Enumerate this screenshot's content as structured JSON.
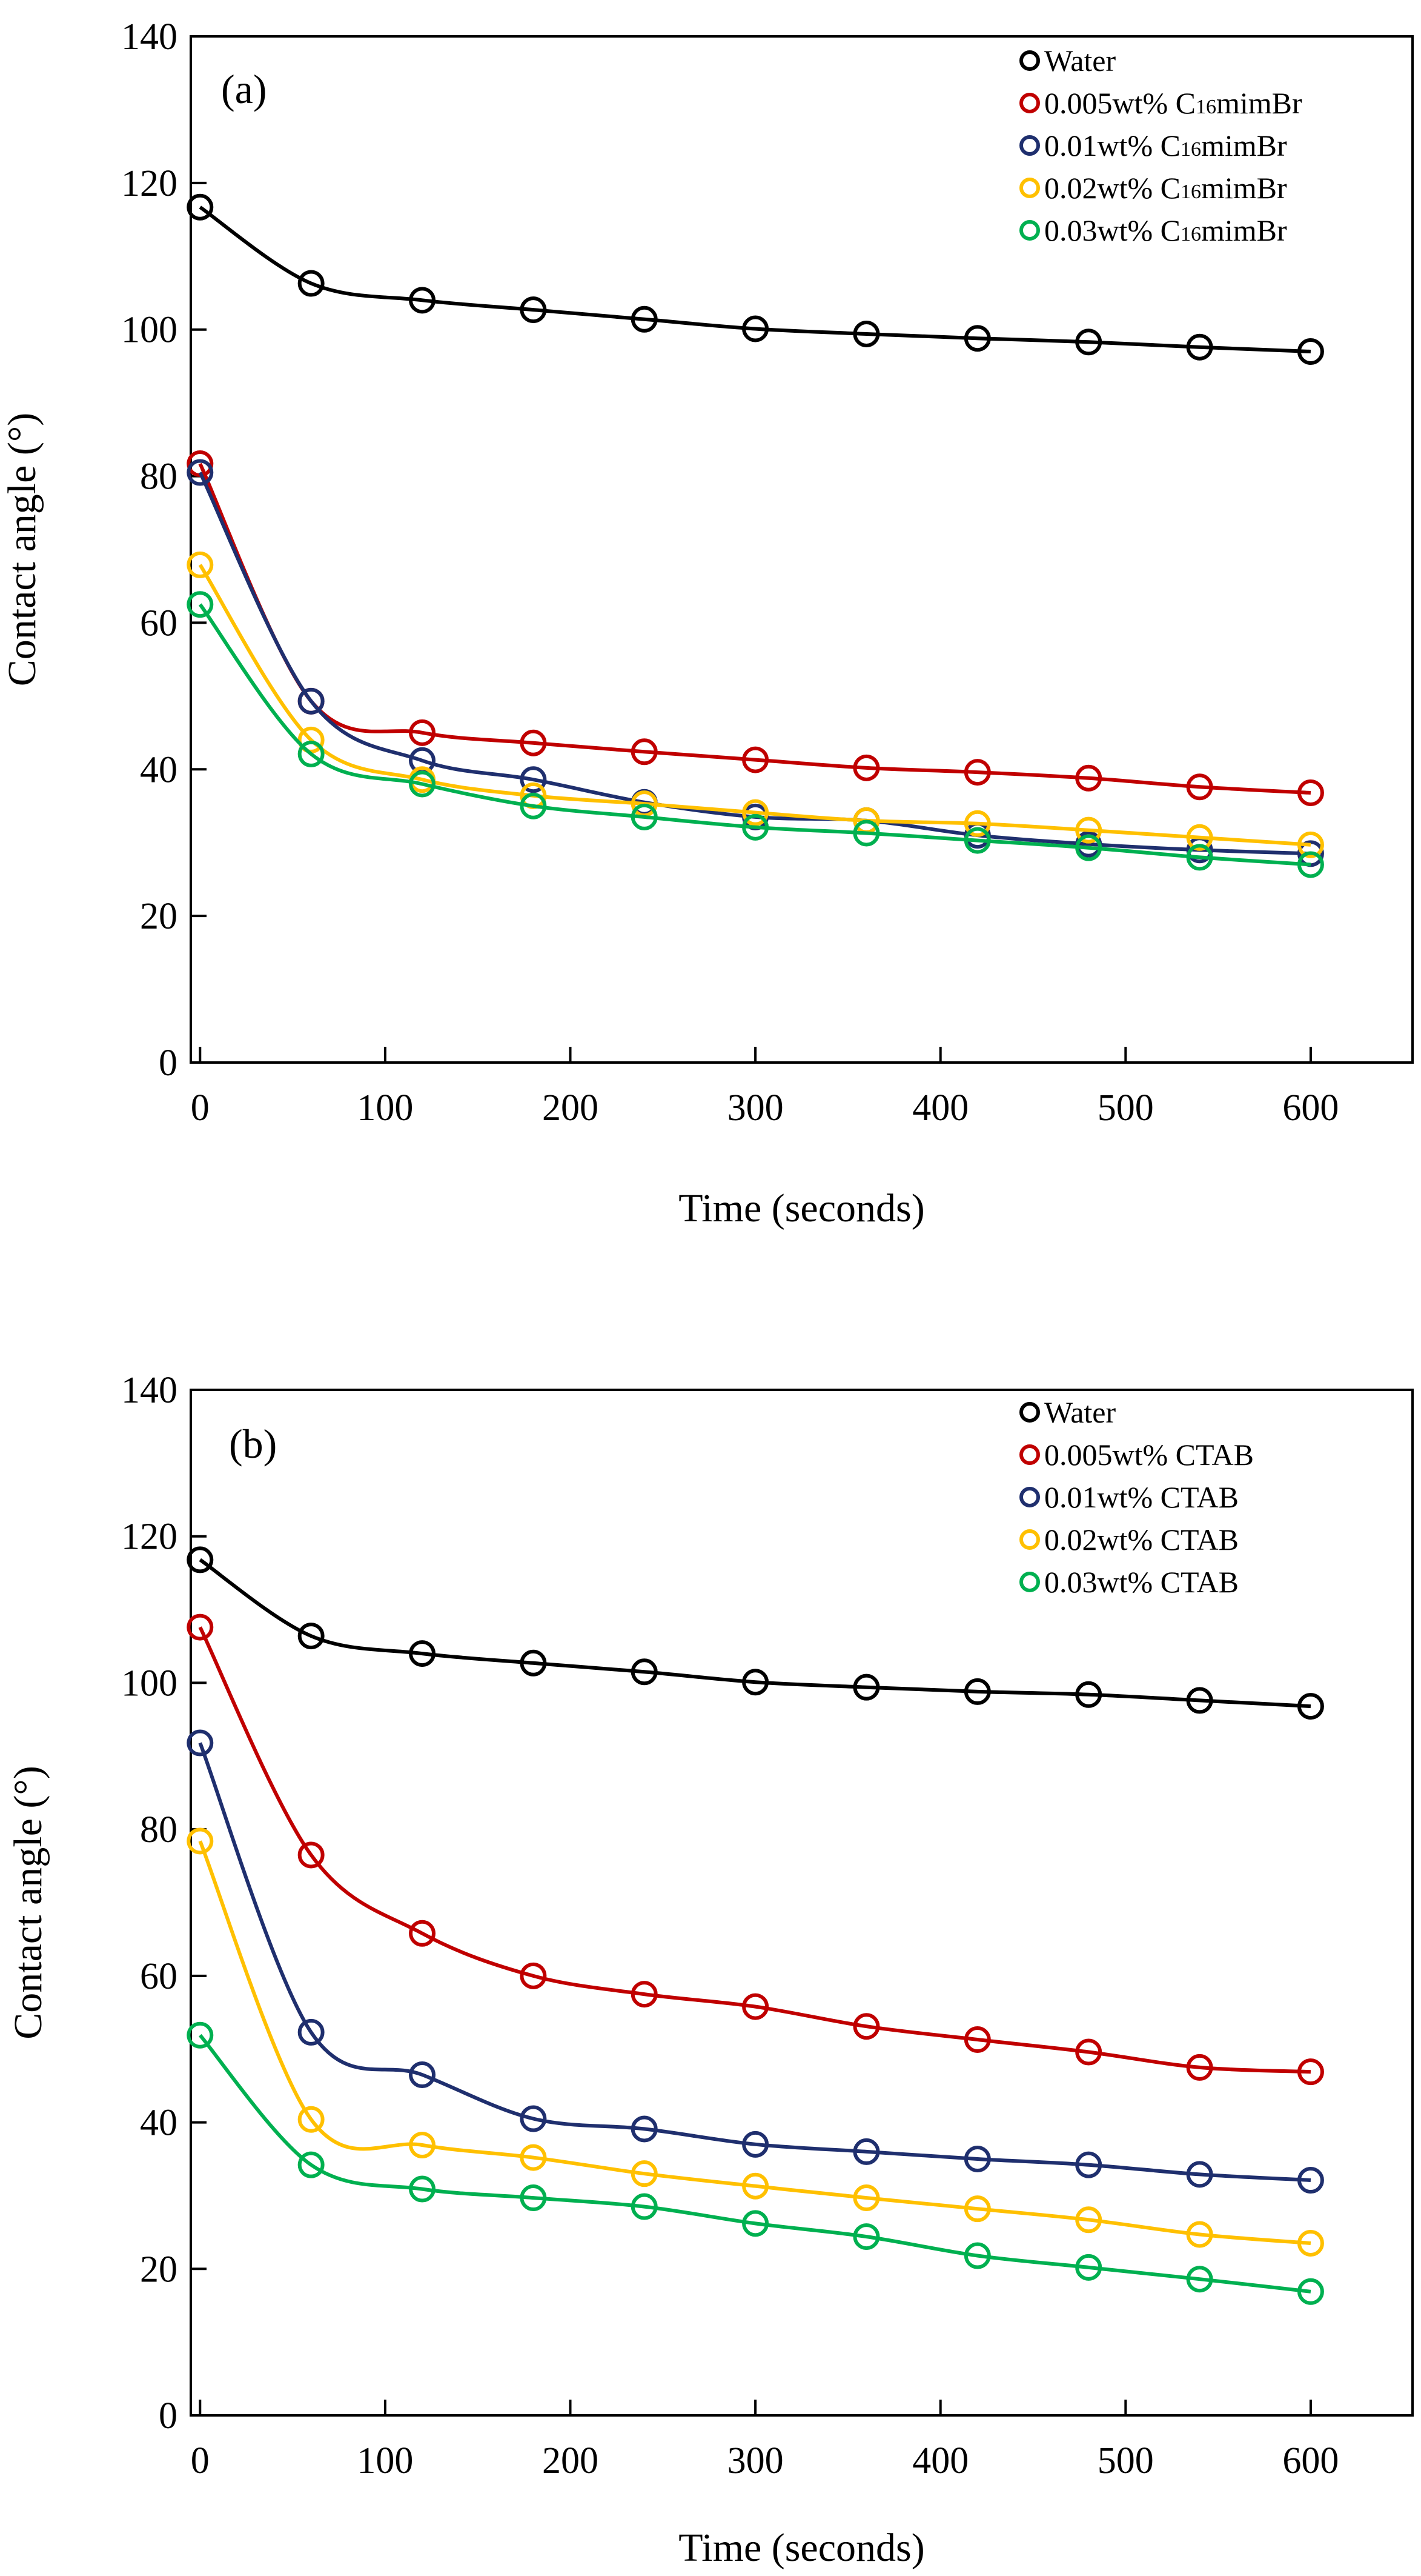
{
  "chart_data": [
    {
      "type": "scatter",
      "title": "",
      "panel_label": "(a)",
      "xlabel": "Time (seconds)",
      "ylabel": "Contact angle (°)",
      "xlim": [
        -5,
        655
      ],
      "ylim": [
        0,
        140
      ],
      "xticks": [
        0,
        100,
        200,
        300,
        400,
        500,
        600
      ],
      "yticks": [
        0,
        20,
        40,
        60,
        80,
        100,
        120,
        140
      ],
      "grid": false,
      "legend_position": "top-right",
      "x": [
        0,
        60,
        120,
        180,
        240,
        300,
        360,
        420,
        480,
        540,
        600
      ],
      "series": [
        {
          "name": "Water",
          "legend_text": "Water",
          "legend_sub": "",
          "legend_tail": "",
          "color": "#000000",
          "values": [
            116.7,
            106.3,
            104.0,
            102.7,
            101.4,
            100.1,
            99.4,
            98.8,
            98.3,
            97.6,
            97.0
          ]
        },
        {
          "name": "0.005wt% C16mimBr",
          "legend_text": "0.005wt% C",
          "legend_sub": "16",
          "legend_tail": "mimBr",
          "color": "#c00000",
          "values": [
            81.7,
            49.3,
            45.0,
            43.6,
            42.4,
            41.3,
            40.2,
            39.6,
            38.8,
            37.6,
            36.8
          ]
        },
        {
          "name": "0.01wt% C16mimBr",
          "legend_text": "0.01wt% C",
          "legend_sub": "16",
          "legend_tail": "mimBr",
          "color": "#1f2f6e",
          "values": [
            80.5,
            49.3,
            41.2,
            38.6,
            35.5,
            33.5,
            33.0,
            31.0,
            29.8,
            29.0,
            28.5
          ]
        },
        {
          "name": "0.02wt% C16mimBr",
          "legend_text": "0.02wt% C",
          "legend_sub": "16",
          "legend_tail": "mimBr",
          "color": "#ffc000",
          "values": [
            67.9,
            44.0,
            38.6,
            36.4,
            35.3,
            34.1,
            33.0,
            32.6,
            31.7,
            30.7,
            29.7
          ]
        },
        {
          "name": "0.03wt% C16mimBr",
          "legend_text": "0.03wt% C",
          "legend_sub": "16",
          "legend_tail": "mimBr",
          "color": "#00b050",
          "values": [
            62.5,
            42.1,
            38.0,
            35.0,
            33.5,
            32.1,
            31.3,
            30.3,
            29.3,
            28.0,
            27.0
          ]
        }
      ]
    },
    {
      "type": "scatter",
      "title": "",
      "panel_label": "(b)",
      "xlabel": "Time (seconds)",
      "ylabel": "Contact angle (°)",
      "xlim": [
        -5,
        655
      ],
      "ylim": [
        0,
        140
      ],
      "xticks": [
        0,
        100,
        200,
        300,
        400,
        500,
        600
      ],
      "yticks": [
        0,
        20,
        40,
        60,
        80,
        100,
        120,
        140
      ],
      "grid": false,
      "legend_position": "top-right",
      "x": [
        0,
        60,
        120,
        180,
        240,
        300,
        360,
        420,
        480,
        540,
        600
      ],
      "series": [
        {
          "name": "Water",
          "legend_text": "Water",
          "legend_sub": "",
          "legend_tail": "",
          "color": "#000000",
          "values": [
            116.8,
            106.4,
            104.0,
            102.7,
            101.5,
            100.1,
            99.4,
            98.8,
            98.4,
            97.6,
            96.8
          ]
        },
        {
          "name": "0.005wt% CTAB",
          "legend_text": "0.005wt% CTAB",
          "legend_sub": "",
          "legend_tail": "",
          "color": "#c00000",
          "values": [
            107.6,
            76.5,
            65.8,
            60.0,
            57.5,
            55.8,
            53.1,
            51.3,
            49.6,
            47.5,
            46.9
          ]
        },
        {
          "name": "0.01wt% CTAB",
          "legend_text": "0.01wt% CTAB",
          "legend_sub": "",
          "legend_tail": "",
          "color": "#1f2f6e",
          "values": [
            91.8,
            52.3,
            46.5,
            40.5,
            39.1,
            37.0,
            36.0,
            35.0,
            34.2,
            32.9,
            32.1
          ]
        },
        {
          "name": "0.02wt% CTAB",
          "legend_text": "0.02wt% CTAB",
          "legend_sub": "",
          "legend_tail": "",
          "color": "#ffc000",
          "values": [
            78.4,
            40.4,
            36.9,
            35.2,
            33.0,
            31.3,
            29.7,
            28.2,
            26.7,
            24.7,
            23.5
          ]
        },
        {
          "name": "0.03wt% CTAB",
          "legend_text": "0.03wt% CTAB",
          "legend_sub": "",
          "legend_tail": "",
          "color": "#00b050",
          "values": [
            51.9,
            34.2,
            30.9,
            29.7,
            28.5,
            26.2,
            24.4,
            21.8,
            20.2,
            18.6,
            16.9
          ]
        }
      ]
    }
  ]
}
